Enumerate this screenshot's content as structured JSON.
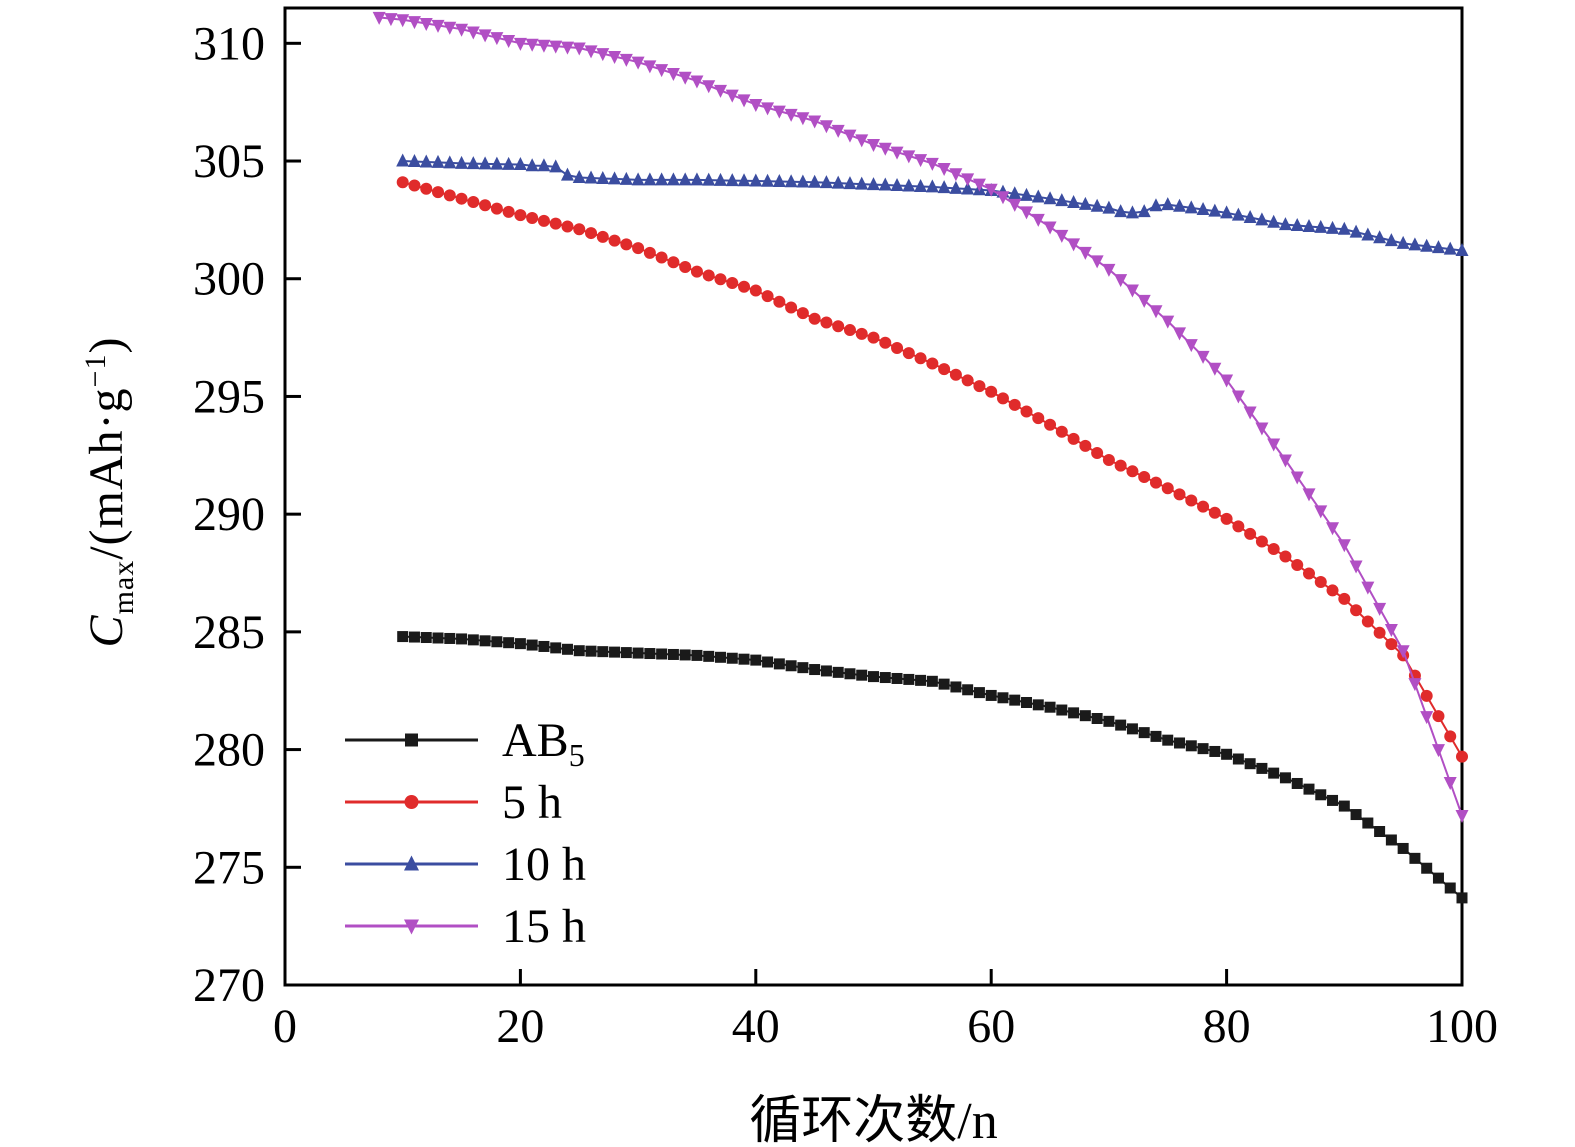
{
  "figure": {
    "background": "#ffffff",
    "axis_color": "#000000"
  },
  "chart_data": {
    "type": "line",
    "title": "",
    "xlabel": "循环次数/n",
    "ylabel": {
      "var": "C",
      "var_sub": "max",
      "mid": "/(mAh·g",
      "sup": "−1",
      "end": ")"
    },
    "xlim": [
      0,
      100
    ],
    "ylim": [
      270,
      311.5
    ],
    "x_ticks": [
      0,
      20,
      40,
      60,
      80,
      100
    ],
    "y_ticks": [
      270,
      275,
      280,
      285,
      290,
      295,
      300,
      305,
      310
    ],
    "grid": false,
    "legend_position": "lower-left-inside",
    "series": [
      {
        "name": "AB5",
        "label": "AB",
        "label_sub": "5",
        "marker": "square",
        "color": "#1a1a1a",
        "x_start": 10,
        "x_step": 1,
        "y": [
          284.8,
          284.78,
          284.76,
          284.74,
          284.72,
          284.7,
          284.66,
          284.62,
          284.58,
          284.54,
          284.5,
          284.44,
          284.38,
          284.32,
          284.26,
          284.2,
          284.18,
          284.16,
          284.14,
          284.12,
          284.1,
          284.08,
          284.06,
          284.04,
          284.02,
          284.0,
          283.96,
          283.92,
          283.88,
          283.84,
          283.8,
          283.72,
          283.64,
          283.56,
          283.48,
          283.4,
          283.34,
          283.28,
          283.22,
          283.16,
          283.1,
          283.06,
          283.02,
          282.98,
          282.94,
          282.9,
          282.78,
          282.66,
          282.54,
          282.42,
          282.3,
          282.2,
          282.1,
          282.0,
          281.9,
          281.8,
          281.68,
          281.56,
          281.44,
          281.32,
          281.2,
          281.04,
          280.88,
          280.72,
          280.56,
          280.4,
          280.28,
          280.16,
          280.04,
          279.92,
          279.8,
          279.6,
          279.4,
          279.2,
          279.0,
          278.8,
          278.56,
          278.32,
          278.08,
          277.84,
          277.6,
          277.24,
          276.88,
          276.52,
          276.16,
          275.8,
          275.38,
          274.96,
          274.54,
          274.12,
          273.7
        ]
      },
      {
        "name": "5h",
        "label": "5 h",
        "label_sub": "",
        "marker": "circle",
        "color": "#e02b2b",
        "x_start": 10,
        "x_step": 1,
        "y": [
          304.1,
          303.96,
          303.82,
          303.68,
          303.54,
          303.4,
          303.26,
          303.12,
          302.98,
          302.84,
          302.7,
          302.58,
          302.46,
          302.34,
          302.22,
          302.1,
          301.94,
          301.78,
          301.62,
          301.46,
          301.3,
          301.1,
          300.9,
          300.7,
          300.5,
          300.3,
          300.14,
          299.98,
          299.82,
          299.66,
          299.5,
          299.26,
          299.02,
          298.78,
          298.54,
          298.3,
          298.14,
          297.98,
          297.82,
          297.66,
          297.5,
          297.28,
          297.06,
          296.84,
          296.62,
          296.4,
          296.16,
          295.92,
          295.68,
          295.44,
          295.2,
          294.92,
          294.64,
          294.36,
          294.08,
          293.8,
          293.5,
          293.2,
          292.9,
          292.6,
          292.3,
          292.06,
          291.82,
          291.58,
          291.34,
          291.1,
          290.84,
          290.58,
          290.32,
          290.06,
          289.8,
          289.48,
          289.16,
          288.84,
          288.52,
          288.2,
          287.84,
          287.48,
          287.12,
          286.76,
          286.4,
          285.92,
          285.44,
          284.96,
          284.48,
          284.0,
          283.14,
          282.28,
          281.42,
          280.56,
          279.7
        ]
      },
      {
        "name": "10h",
        "label": "10 h",
        "label_sub": "",
        "marker": "triangle-up",
        "color": "#3b4da0",
        "x_start": 10,
        "x_step": 1,
        "y": [
          305.0,
          304.98,
          304.96,
          304.94,
          304.92,
          304.9,
          304.89,
          304.88,
          304.87,
          304.86,
          304.85,
          304.8,
          304.8,
          304.75,
          304.4,
          304.3,
          304.28,
          304.26,
          304.24,
          304.22,
          304.2,
          304.2,
          304.2,
          304.2,
          304.2,
          304.2,
          304.19,
          304.18,
          304.17,
          304.16,
          304.15,
          304.14,
          304.13,
          304.12,
          304.11,
          304.1,
          304.08,
          304.06,
          304.04,
          304.02,
          304.0,
          303.98,
          303.96,
          303.94,
          303.92,
          303.9,
          303.87,
          303.84,
          303.81,
          303.78,
          303.75,
          303.68,
          303.61,
          303.54,
          303.47,
          303.4,
          303.32,
          303.24,
          303.16,
          303.08,
          303.0,
          302.85,
          302.8,
          302.85,
          303.1,
          303.15,
          303.08,
          303.01,
          302.94,
          302.87,
          302.8,
          302.7,
          302.6,
          302.5,
          302.4,
          302.3,
          302.26,
          302.22,
          302.18,
          302.14,
          302.1,
          301.98,
          301.86,
          301.74,
          301.62,
          301.5,
          301.44,
          301.38,
          301.32,
          301.26,
          301.2
        ]
      },
      {
        "name": "15h",
        "label": "15 h",
        "label_sub": "",
        "marker": "triangle-down",
        "color": "#b14fc4",
        "x_start": 8,
        "x_step": 1,
        "y": [
          311.1,
          311.05,
          311.0,
          310.92,
          310.84,
          310.76,
          310.68,
          310.6,
          310.48,
          310.36,
          310.24,
          310.12,
          310.0,
          309.96,
          309.92,
          309.88,
          309.84,
          309.8,
          309.68,
          309.56,
          309.44,
          309.32,
          309.2,
          309.04,
          308.88,
          308.72,
          308.56,
          308.4,
          308.2,
          308.0,
          307.8,
          307.6,
          307.4,
          307.26,
          307.12,
          306.98,
          306.84,
          306.7,
          306.5,
          306.3,
          306.1,
          305.9,
          305.7,
          305.54,
          305.38,
          305.22,
          305.06,
          304.9,
          304.68,
          304.46,
          304.24,
          304.02,
          303.8,
          303.48,
          303.16,
          302.84,
          302.52,
          302.2,
          301.84,
          301.48,
          301.12,
          300.76,
          300.4,
          299.96,
          299.52,
          299.08,
          298.64,
          298.2,
          297.7,
          297.2,
          296.7,
          296.2,
          295.7,
          295.02,
          294.34,
          293.66,
          292.98,
          292.3,
          291.58,
          290.86,
          290.14,
          289.42,
          288.7,
          287.8,
          286.9,
          286.0,
          285.1,
          284.2,
          282.8,
          281.4,
          280.0,
          278.6,
          277.2
        ]
      }
    ]
  }
}
